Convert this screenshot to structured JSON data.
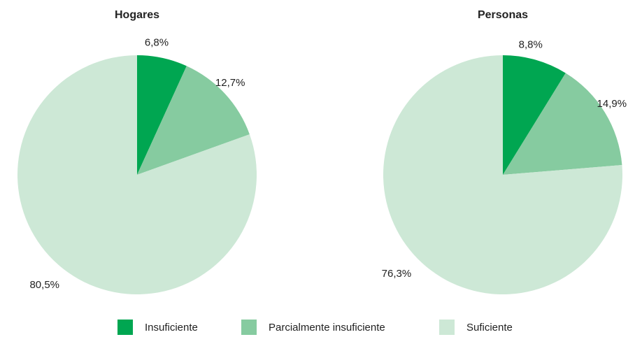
{
  "chart_data": [
    {
      "type": "pie",
      "title": "Hogares",
      "categories": [
        "Insuficiente",
        "Parcialmente insuficiente",
        "Suficiente"
      ],
      "values": [
        6.8,
        12.7,
        80.5
      ],
      "value_labels": [
        "6,8%",
        "12,7%",
        "80,5%"
      ],
      "colors": [
        "#00a651",
        "#86cba0",
        "#cde8d6"
      ]
    },
    {
      "type": "pie",
      "title": "Personas",
      "categories": [
        "Insuficiente",
        "Parcialmente insuficiente",
        "Suficiente"
      ],
      "values": [
        8.8,
        14.9,
        76.3
      ],
      "value_labels": [
        "8,8%",
        "14,9%",
        "76,3%"
      ],
      "colors": [
        "#00a651",
        "#86cba0",
        "#cde8d6"
      ]
    }
  ]
}
